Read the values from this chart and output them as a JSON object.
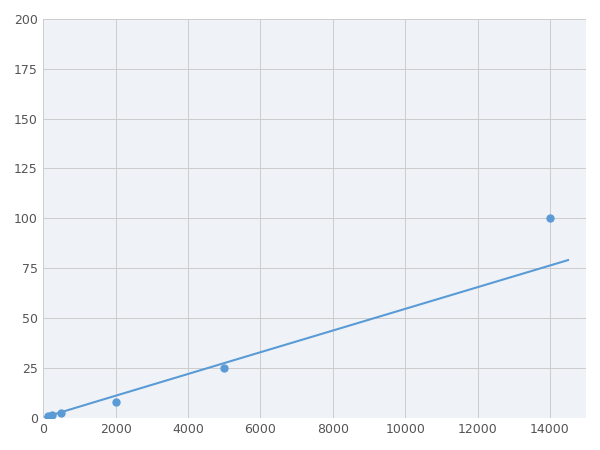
{
  "x_data": [
    125,
    250,
    500,
    2000,
    5000,
    14000
  ],
  "y_data": [
    0.8,
    1.5,
    2.5,
    8.0,
    25.0,
    100.0
  ],
  "line_color": "#5b9bd5",
  "marker_color": "#5b9bd5",
  "marker_size": 5,
  "line_width": 1.5,
  "xlim": [
    0,
    15000
  ],
  "ylim": [
    0,
    200
  ],
  "xticks": [
    0,
    2000,
    4000,
    6000,
    8000,
    10000,
    12000,
    14000
  ],
  "yticks": [
    0,
    25,
    50,
    75,
    100,
    125,
    150,
    175,
    200
  ],
  "grid_color": "#cccccc",
  "background_color": "#eff3f8",
  "fig_background": "#ffffff"
}
